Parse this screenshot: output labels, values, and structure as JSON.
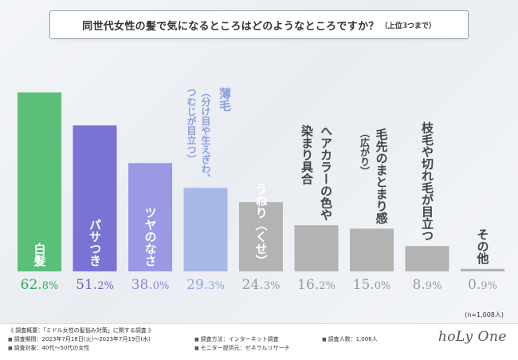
{
  "title": {
    "main": "同世代女性の髪で気になるところはどのようなところですか？",
    "sub": "（上位3つまで）"
  },
  "chart_data": {
    "type": "bar",
    "title": "同世代女性の髪で気になるところはどのようなところですか？（上位3つまで）",
    "ylim": [
      0,
      70
    ],
    "unit": "%",
    "sample_note": "(n=1,008人)",
    "categories": [
      {
        "label": "白髪",
        "lines": [
          "白髪"
        ],
        "inside": true,
        "sub": []
      },
      {
        "label": "パサつき",
        "lines": [
          "パサつき"
        ],
        "inside": true,
        "sub": []
      },
      {
        "label": "ツヤのなさ",
        "lines": [
          "ツヤのなさ"
        ],
        "inside": true,
        "sub": []
      },
      {
        "label": "薄毛（分け目や生えぎわ、つむじが目立つ）",
        "lines": [
          "薄毛"
        ],
        "inside": false,
        "sub": [
          "（分け目や生えぎわ、",
          "つむじが目立つ）"
        ]
      },
      {
        "label": "うねり（くせ）",
        "lines": [
          "うねり（くせ）"
        ],
        "inside": true,
        "sub": []
      },
      {
        "label": "ヘアカラーの色や染まり具合",
        "lines": [
          "ヘアカラーの色や",
          "染まり具合"
        ],
        "inside": false,
        "sub": []
      },
      {
        "label": "毛先のまとまり感（広がり）",
        "lines": [
          "毛先のまとまり感"
        ],
        "inside": false,
        "sub": [
          "（広がり）"
        ]
      },
      {
        "label": "枝毛や切れ毛が目立つ",
        "lines": [
          "枝毛や切れ毛が目立つ"
        ],
        "inside": false,
        "sub": []
      },
      {
        "label": "その他",
        "lines": [
          "その他"
        ],
        "inside": false,
        "sub": []
      }
    ],
    "values": [
      62.8,
      51.2,
      38.0,
      29.3,
      24.3,
      16.2,
      15.0,
      8.9,
      0.9
    ],
    "colors": [
      "#5bbf7a",
      "#7a73d4",
      "#9b98e6",
      "#a8b8e8",
      "#b3b3b3",
      "#b3b3b3",
      "#b3b3b3",
      "#b3b3b3",
      "#b3b3b3"
    ],
    "value_colors": [
      "#3aa85e",
      "#6a62c8",
      "#8a86dc",
      "#8fa3df",
      "#9a9a9a",
      "#9a9a9a",
      "#9a9a9a",
      "#9a9a9a",
      "#9a9a9a"
    ]
  },
  "footer": {
    "heading": "《 調査概要：「ミドル女性の髪悩み対策」に関する調査 》",
    "period": "調査期間：2023年7月18日(火)～2023年7月19日(水)",
    "target": "調査対象：40代～50代の女性",
    "method": "調査方法：インターネット調査",
    "provider": "モニター提供元：ゼネラルリサーチ",
    "count": "調査人数：1,008人",
    "logo": "hoLy One"
  }
}
